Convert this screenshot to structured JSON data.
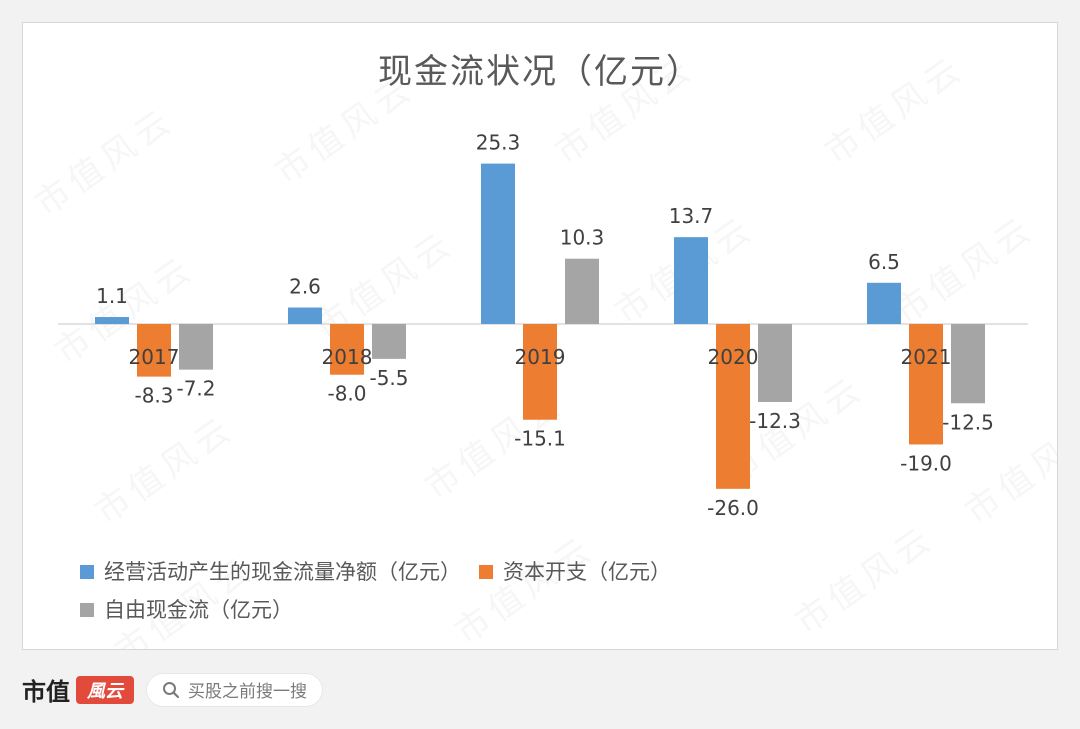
{
  "chart_data": {
    "type": "bar",
    "title": "现金流状况（亿元）",
    "categories": [
      "2017",
      "2018",
      "2019",
      "2020",
      "2021"
    ],
    "series": [
      {
        "name": "经营活动产生的现金流量净额（亿元）",
        "color": "#5B9BD5",
        "values": [
          1.1,
          2.6,
          25.3,
          13.7,
          6.5
        ],
        "labels": [
          "1.1",
          "2.6",
          "25.3",
          "13.7",
          "6.5"
        ]
      },
      {
        "name": "资本开支（亿元）",
        "color": "#ED7D31",
        "values": [
          -8.3,
          -8.0,
          -15.1,
          -26.0,
          -19.0
        ],
        "labels": [
          "-8.3",
          "-8.0",
          "-15.1",
          "-26.0",
          "-19.0"
        ]
      },
      {
        "name": "自由现金流（亿元）",
        "color": "#A5A5A5",
        "values": [
          -7.2,
          -5.5,
          10.3,
          -12.3,
          -12.5
        ],
        "labels": [
          "-7.2",
          "-5.5",
          "10.3",
          "-12.3",
          "-12.5"
        ]
      }
    ],
    "legend_position": "bottom",
    "grid": false,
    "ylim": [
      -26,
      26
    ]
  },
  "watermark": "市值风云",
  "footer": {
    "brand_text": "市值",
    "brand_seal": "風云",
    "search_icon": "search-icon",
    "search_placeholder": "买股之前搜一搜"
  }
}
